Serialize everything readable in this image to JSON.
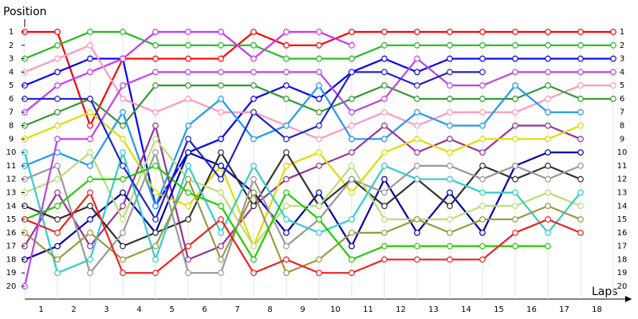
{
  "chart_data": {
    "type": "line",
    "y_label": "Position",
    "x_label": "Laps",
    "x": [
      0,
      1,
      2,
      3,
      4,
      5,
      6,
      7,
      8,
      9,
      10,
      11,
      12,
      13,
      14,
      15,
      16,
      17,
      18
    ],
    "xlim": [
      0,
      18
    ],
    "xticks": [
      {
        "value": 0.5,
        "label": "1"
      },
      {
        "value": 1.5,
        "label": "2"
      },
      {
        "value": 2.5,
        "label": "3"
      },
      {
        "value": 3.5,
        "label": "4"
      },
      {
        "value": 4.5,
        "label": "5"
      },
      {
        "value": 5.5,
        "label": "6"
      },
      {
        "value": 6.5,
        "label": "7"
      },
      {
        "value": 7.5,
        "label": "8"
      },
      {
        "value": 8.5,
        "label": "9"
      },
      {
        "value": 9.5,
        "label": "10"
      },
      {
        "value": 10.5,
        "label": "11"
      },
      {
        "value": 11.5,
        "label": "12"
      },
      {
        "value": 12.5,
        "label": "13"
      },
      {
        "value": 13.5,
        "label": "14"
      },
      {
        "value": 14.5,
        "label": "15"
      },
      {
        "value": 15.5,
        "label": "16"
      },
      {
        "value": 16.5,
        "label": "17"
      },
      {
        "value": 17.5,
        "label": "18"
      }
    ],
    "ylim": [
      1,
      20
    ],
    "y_inverted": true,
    "yticks": [
      1,
      2,
      3,
      4,
      5,
      6,
      7,
      8,
      9,
      10,
      11,
      12,
      13,
      14,
      15,
      16,
      17,
      18,
      19,
      20
    ],
    "grid": true,
    "series": [
      {
        "color": "#ff0000",
        "values": [
          1,
          1,
          8,
          3,
          3,
          3,
          3,
          1,
          2,
          2,
          1,
          1,
          1,
          1,
          1,
          1,
          1,
          1,
          1
        ]
      },
      {
        "color": "#22bb22",
        "values": [
          3,
          2,
          1,
          1,
          2,
          2,
          2,
          2,
          3,
          3,
          3,
          2,
          2,
          2,
          2,
          2,
          2,
          2,
          2
        ]
      },
      {
        "color": "#0000ff",
        "values": [
          5,
          4,
          3,
          3,
          14,
          10,
          9,
          6,
          5,
          6,
          4,
          3,
          4,
          3,
          3,
          3,
          3,
          3,
          3
        ]
      },
      {
        "color": "#cc33ff",
        "values": [
          7,
          5,
          4,
          3,
          1,
          1,
          1,
          3,
          1,
          1,
          2,
          null,
          null,
          null,
          null,
          null,
          null,
          null,
          null
        ]
      },
      {
        "color": "#ff99bb",
        "values": [
          4,
          3,
          2,
          6,
          7,
          6,
          7,
          7,
          8,
          9,
          8,
          7,
          8,
          7,
          7,
          7,
          6,
          5,
          5
        ]
      },
      {
        "color": "#339933",
        "values": [
          8,
          7,
          6,
          8,
          5,
          5,
          5,
          5,
          6,
          7,
          6,
          5,
          6,
          6,
          6,
          6,
          5,
          6,
          6
        ]
      },
      {
        "color": "#2299ee",
        "values": [
          11,
          10,
          11,
          7,
          14,
          8,
          6,
          9,
          8,
          5,
          9,
          9,
          7,
          8,
          8,
          5,
          7,
          7,
          null
        ]
      },
      {
        "color": "#993399",
        "values": [
          17,
          13,
          17,
          14,
          8,
          18,
          17,
          14,
          12,
          11,
          10,
          8,
          10,
          9,
          10,
          8,
          8,
          9,
          null
        ]
      },
      {
        "color": "#dddd00",
        "values": [
          9,
          8,
          7,
          9,
          13,
          14,
          11,
          17,
          11,
          10,
          13,
          10,
          9,
          10,
          9,
          9,
          9,
          8,
          null
        ]
      },
      {
        "color": "#0000aa",
        "values": [
          18,
          17,
          15,
          13,
          16,
          10,
          11,
          13,
          16,
          13,
          17,
          12,
          16,
          13,
          16,
          11,
          10,
          10,
          null
        ]
      },
      {
        "color": "#333333",
        "values": [
          14,
          15,
          14,
          17,
          16,
          15,
          10,
          14,
          10,
          14,
          12,
          14,
          12,
          14,
          11,
          12,
          11,
          12,
          null
        ]
      },
      {
        "color": "#999999",
        "values": [
          12,
          11,
          19,
          16,
          10,
          19,
          19,
          12,
          17,
          15,
          12,
          13,
          11,
          11,
          12,
          11,
          12,
          11,
          null
        ]
      },
      {
        "color": "#bbdd77",
        "values": [
          13,
          12,
          10,
          15,
          9,
          12,
          13,
          17,
          14,
          14,
          11,
          15,
          15,
          15,
          14,
          14,
          13,
          14,
          null
        ]
      },
      {
        "color": "#33cccc",
        "values": [
          10,
          19,
          18,
          10,
          18,
          11,
          16,
          11,
          15,
          16,
          15,
          11,
          12,
          12,
          13,
          13,
          16,
          13,
          null
        ]
      },
      {
        "color": "#999944",
        "values": [
          16,
          18,
          16,
          18,
          17,
          12,
          18,
          13,
          19,
          18,
          16,
          16,
          15,
          16,
          15,
          15,
          14,
          15,
          null
        ]
      },
      {
        "color": "#22cc00",
        "values": [
          15,
          14,
          12,
          12,
          11,
          13,
          14,
          18,
          13,
          15,
          18,
          17,
          17,
          17,
          17,
          17,
          17,
          null,
          null
        ]
      },
      {
        "color": "#ee2222",
        "values": [
          15,
          16,
          13,
          19,
          19,
          17,
          15,
          19,
          18,
          19,
          19,
          18,
          18,
          18,
          18,
          16,
          15,
          16,
          null
        ]
      },
      {
        "color": "#bb44ee",
        "values": [
          20,
          9,
          9,
          5,
          4,
          4,
          4,
          4,
          4,
          4,
          7,
          6,
          3,
          5,
          5,
          4,
          4,
          4,
          4
        ]
      },
      {
        "color": "#2222cc",
        "values": [
          6,
          6,
          6,
          11,
          15,
          9,
          12,
          7,
          9,
          8,
          4,
          4,
          5,
          4,
          4,
          null,
          null,
          null,
          null
        ]
      }
    ]
  }
}
